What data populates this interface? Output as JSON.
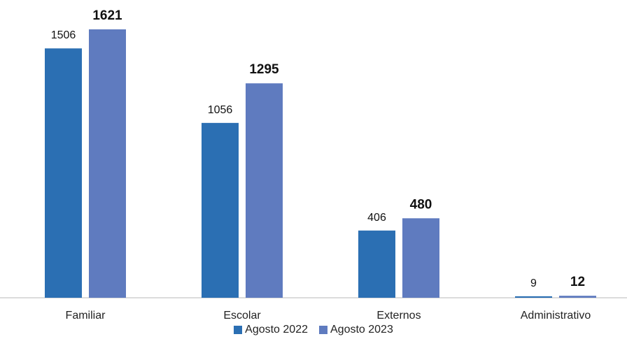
{
  "chart_data": {
    "type": "bar",
    "categories": [
      "Familiar",
      "Escolar",
      "Externos",
      "Administrativo"
    ],
    "series": [
      {
        "name": "Agosto 2022",
        "values": [
          1506,
          1056,
          406,
          9
        ],
        "color": "#2b6fb3",
        "label_weight": "normal"
      },
      {
        "name": "Agosto 2023",
        "values": [
          1621,
          1295,
          480,
          12
        ],
        "color": "#5f7bbf",
        "label_weight": "bold"
      }
    ],
    "title": "",
    "xlabel": "",
    "ylabel": "",
    "ylim": [
      0,
      1621
    ],
    "grid": false,
    "legend_position": "bottom"
  }
}
